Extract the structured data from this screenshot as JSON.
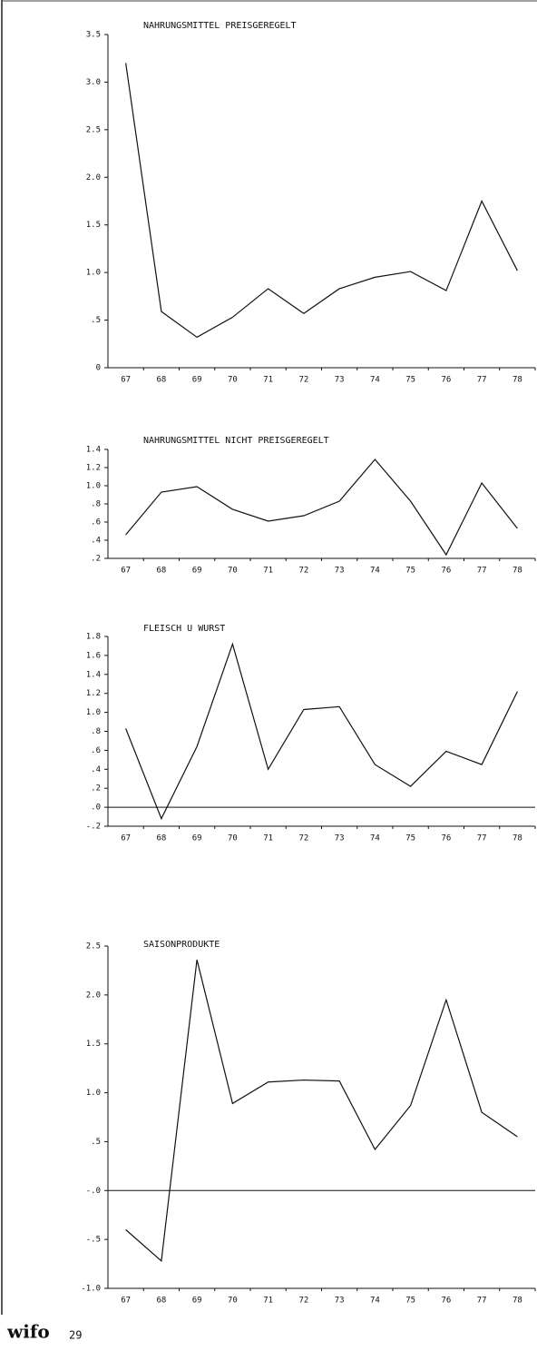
{
  "chart_data": [
    {
      "type": "line",
      "title": "NAHRUNGSMITTEL  PREISGEREGELT",
      "color": "#111111",
      "categories": [
        "67",
        "68",
        "69",
        "70",
        "71",
        "72",
        "73",
        "74",
        "75",
        "76",
        "77",
        "78"
      ],
      "values": [
        3.2,
        0.59,
        0.32,
        0.53,
        0.83,
        0.57,
        0.83,
        0.95,
        1.01,
        0.81,
        1.75,
        1.02
      ],
      "ylim": [
        0,
        3.5
      ],
      "yticks": [
        3.5,
        {
          "value": 3,
          "label": "3.0"
        },
        2.5,
        {
          "value": 2,
          "label": "2.0"
        },
        1.5,
        {
          "value": 1,
          "label": "1.0"
        },
        {
          "value": 0.5,
          "label": ".5"
        },
        0
      ],
      "zero_line": false
    },
    {
      "type": "line",
      "title": "NAHRUNGSMITTEL  NICHT PREISGEREGELT",
      "color": "#111111",
      "categories": [
        "67",
        "68",
        "69",
        "70",
        "71",
        "72",
        "73",
        "74",
        "75",
        "76",
        "77",
        "78"
      ],
      "values": [
        0.46,
        0.93,
        0.99,
        0.74,
        0.61,
        0.67,
        0.83,
        1.29,
        0.83,
        0.24,
        1.03,
        0.53
      ],
      "ylim": [
        0.2,
        1.4
      ],
      "yticks": [
        1.4,
        1.2,
        {
          "value": 1,
          "label": "1.0"
        },
        {
          "value": 0.8,
          "label": ".8"
        },
        {
          "value": 0.6,
          "label": ".6"
        },
        {
          "value": 0.4,
          "label": ".4"
        },
        {
          "value": 0.2,
          "label": ".2"
        }
      ],
      "zero_line": false
    },
    {
      "type": "line",
      "title": "FLEISCH U  WURST",
      "color": "#111111",
      "categories": [
        "67",
        "68",
        "69",
        "70",
        "71",
        "72",
        "73",
        "74",
        "75",
        "76",
        "77",
        "78"
      ],
      "values": [
        0.83,
        -0.12,
        0.64,
        1.72,
        0.4,
        1.03,
        1.06,
        0.45,
        0.22,
        0.59,
        0.45,
        1.22
      ],
      "ylim": [
        -0.2,
        1.8
      ],
      "yticks": [
        1.8,
        1.6,
        1.4,
        1.2,
        {
          "value": 1,
          "label": "1.0"
        },
        {
          "value": 0.8,
          "label": ".8"
        },
        {
          "value": 0.6,
          "label": ".6"
        },
        {
          "value": 0.4,
          "label": ".4"
        },
        {
          "value": 0.2,
          "label": ".2"
        },
        {
          "value": 0,
          "label": ".0"
        },
        {
          "value": -0.2,
          "label": "-.2"
        }
      ],
      "zero_line": true
    },
    {
      "type": "line",
      "title": "SAISONPRODUKTE",
      "color": "#111111",
      "categories": [
        "67",
        "68",
        "69",
        "70",
        "71",
        "72",
        "73",
        "74",
        "75",
        "76",
        "77",
        "78"
      ],
      "values": [
        -0.4,
        -0.72,
        2.36,
        0.89,
        1.11,
        1.13,
        1.12,
        0.42,
        0.87,
        1.95,
        0.8,
        0.55
      ],
      "ylim": [
        -1,
        2.5
      ],
      "yticks": [
        2.5,
        {
          "value": 2,
          "label": "2.0"
        },
        1.5,
        {
          "value": 1,
          "label": "1.0"
        },
        {
          "value": 0.5,
          "label": ".5"
        },
        {
          "value": 0,
          "label": "-.0"
        },
        {
          "value": -0.5,
          "label": "-.5"
        },
        {
          "value": -1,
          "label": "-1.0"
        }
      ],
      "zero_line": true
    }
  ],
  "footer": {
    "logo": "wifo",
    "page": "29"
  }
}
